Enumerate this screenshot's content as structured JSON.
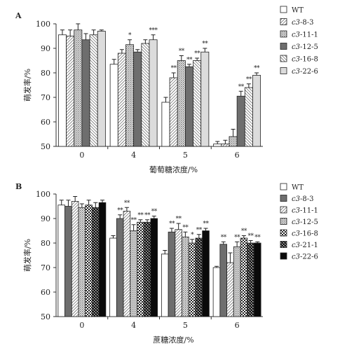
{
  "chart_data": [
    {
      "type": "bar",
      "panel": "A",
      "title": "",
      "xlabel": "葡萄糖浓度/%",
      "ylabel": "萌发率/%",
      "ylim": [
        50,
        100
      ],
      "yticks": [
        50,
        60,
        70,
        80,
        90,
        100
      ],
      "categories": [
        "0",
        "4",
        "5",
        "6"
      ],
      "legend_position": "right",
      "series": [
        {
          "name": "WT",
          "name_plain": "WT",
          "name_italic": "",
          "pattern": "white",
          "values": [
            95.5,
            83.5,
            68,
            51
          ],
          "errors": [
            2,
            2,
            2,
            1
          ],
          "sig": [
            "",
            "",
            "",
            ""
          ]
        },
        {
          "name": "c3-8-3",
          "name_plain": "-8-3",
          "name_italic": "c3",
          "pattern": "diag",
          "values": [
            95,
            88,
            78,
            51
          ],
          "errors": [
            2.5,
            1.5,
            2,
            1.5
          ],
          "sig": [
            "",
            "",
            "**",
            ""
          ]
        },
        {
          "name": "c3-11-1",
          "name_plain": "-11-1",
          "name_italic": "c3",
          "pattern": "dots",
          "values": [
            97.5,
            91.5,
            85,
            54
          ],
          "errors": [
            2.5,
            2,
            2,
            3
          ],
          "sig": [
            "",
            "*",
            "**",
            ""
          ]
        },
        {
          "name": "c3-12-5",
          "name_plain": "-12-5",
          "name_italic": "c3",
          "pattern": "darkgray",
          "values": [
            93.5,
            88.5,
            82.5,
            70.5
          ],
          "errors": [
            2.5,
            1,
            1,
            2
          ],
          "sig": [
            "",
            "",
            "**",
            "**"
          ]
        },
        {
          "name": "c3-16-8",
          "name_plain": "-16-8",
          "name_italic": "c3",
          "pattern": "backdiag",
          "values": [
            95.5,
            92,
            85,
            74
          ],
          "errors": [
            2,
            1.5,
            1,
            1.5
          ],
          "sig": [
            "",
            "",
            "**",
            "**"
          ]
        },
        {
          "name": "c3-22-6",
          "name_plain": "-22-6",
          "name_italic": "c3",
          "pattern": "light",
          "values": [
            97,
            93.5,
            88.5,
            79
          ],
          "errors": [
            0.5,
            2,
            1.5,
            1
          ],
          "sig": [
            "",
            "***",
            "**",
            "**"
          ]
        }
      ]
    },
    {
      "type": "bar",
      "panel": "B",
      "title": "",
      "xlabel": "蔗糖浓度/%",
      "ylabel": "萌发率/%",
      "ylim": [
        50,
        100
      ],
      "yticks": [
        50,
        60,
        70,
        80,
        90,
        100
      ],
      "categories": [
        "0",
        "4",
        "5",
        "6"
      ],
      "legend_position": "right",
      "series": [
        {
          "name": "WT",
          "name_plain": "WT",
          "name_italic": "",
          "pattern": "white",
          "values": [
            95.5,
            82,
            75.5,
            70
          ],
          "errors": [
            2,
            1,
            1.5,
            0.5
          ],
          "sig": [
            "",
            "",
            "",
            ""
          ]
        },
        {
          "name": "c3-8-3",
          "name_plain": "-8-3",
          "name_italic": "c3",
          "pattern": "darkgray",
          "values": [
            95,
            90,
            84.5,
            79.5
          ],
          "errors": [
            2.5,
            1.5,
            1.5,
            1
          ],
          "sig": [
            "",
            "**",
            "**",
            "**"
          ]
        },
        {
          "name": "c3-11-1",
          "name_plain": "-11-1",
          "name_italic": "c3",
          "pattern": "diag",
          "values": [
            97,
            93,
            85.5,
            72
          ],
          "errors": [
            2,
            1.5,
            2.5,
            4
          ],
          "sig": [
            "",
            "**",
            "**",
            ""
          ]
        },
        {
          "name": "c3-12-5",
          "name_plain": "-12-5",
          "name_italic": "c3",
          "pattern": "dots",
          "values": [
            94.5,
            85,
            82.5,
            78.5
          ],
          "errors": [
            1.5,
            2.5,
            2,
            2
          ],
          "sig": [
            "",
            "**",
            "**",
            "**"
          ]
        },
        {
          "name": "c3-16-8",
          "name_plain": "-16-8",
          "name_italic": "c3",
          "pattern": "checker",
          "values": [
            95.5,
            88.5,
            80,
            82
          ],
          "errors": [
            2,
            1,
            1.5,
            1
          ],
          "sig": [
            "",
            "**",
            "*",
            "**"
          ]
        },
        {
          "name": "c3-21-1",
          "name_plain": "-21-1",
          "name_italic": "c3",
          "pattern": "checkerdark",
          "values": [
            94.5,
            88.5,
            82,
            80
          ],
          "errors": [
            2,
            1,
            1.5,
            1
          ],
          "sig": [
            "",
            "**",
            "**",
            "**"
          ]
        },
        {
          "name": "c3-22-6",
          "name_plain": "-22-6",
          "name_italic": "c3",
          "pattern": "black",
          "values": [
            96.5,
            90,
            85,
            80
          ],
          "errors": [
            1,
            1,
            1,
            0.5
          ],
          "sig": [
            "",
            "**",
            "**",
            "**"
          ]
        }
      ]
    }
  ]
}
